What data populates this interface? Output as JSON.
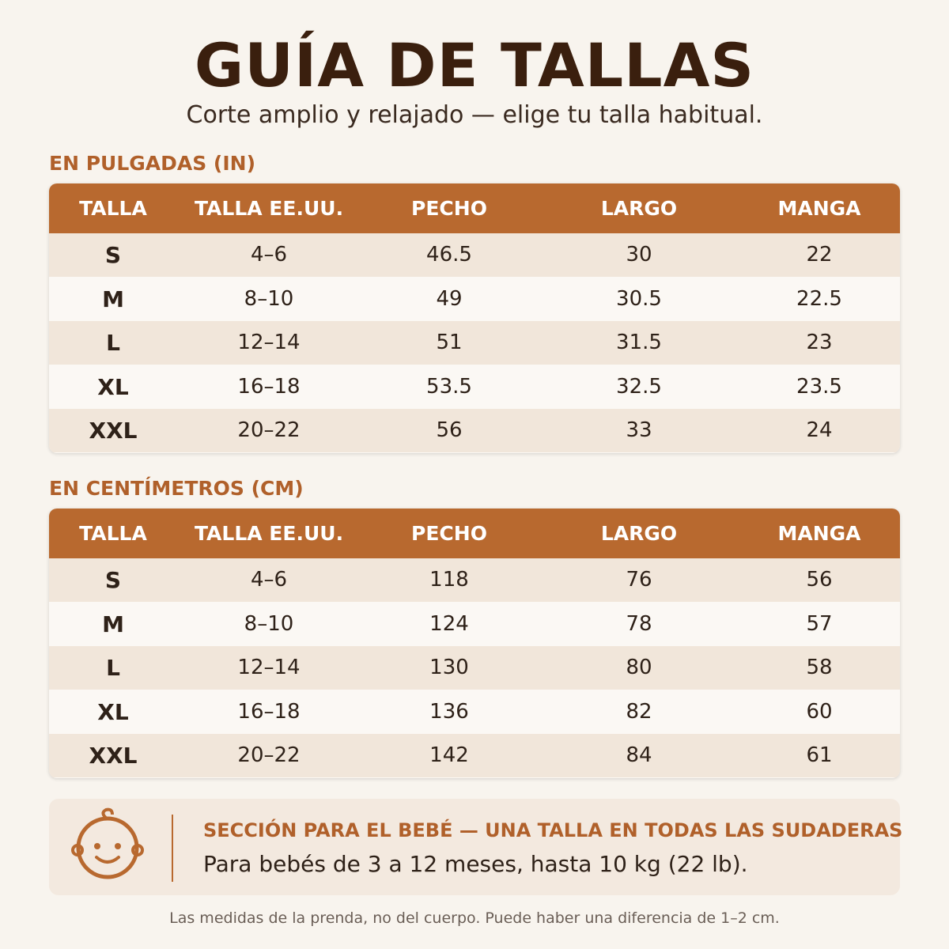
{
  "header": {
    "title": "GUÍA DE TALLAS",
    "subtitle": "Corte amplio y relajado — elige tu talla habitual."
  },
  "tables": [
    {
      "heading": "EN PULGADAS (IN)",
      "columns": [
        "TALLA",
        "TALLA EE.UU.",
        "PECHO",
        "LARGO",
        "MANGA"
      ],
      "rows": [
        [
          "S",
          "4–6",
          46.5,
          30,
          22
        ],
        [
          "M",
          "8–10",
          49,
          30.5,
          22.5
        ],
        [
          "L",
          "12–14",
          51,
          31.5,
          23
        ],
        [
          "XL",
          "16–18",
          53.5,
          32.5,
          23.5
        ],
        [
          "XXL",
          "20–22",
          56,
          33,
          24
        ]
      ]
    },
    {
      "heading": "EN CENTÍMETROS (CM)",
      "columns": [
        "TALLA",
        "TALLA EE.UU.",
        "PECHO",
        "LARGO",
        "MANGA"
      ],
      "rows": [
        [
          "S",
          "4–6",
          118,
          76,
          56
        ],
        [
          "M",
          "8–10",
          124,
          78,
          57
        ],
        [
          "L",
          "12–14",
          130,
          80,
          58
        ],
        [
          "XL",
          "16–18",
          136,
          82,
          60
        ],
        [
          "XXL",
          "20–22",
          142,
          84,
          61
        ]
      ]
    }
  ],
  "baby": {
    "title": "SECCIÓN PARA EL BEBÉ — UNA TALLA EN TODAS LAS SUDADERAS",
    "text": "Para bebés de 3 a 12 meses, hasta 10 kg (22 lb)."
  },
  "footnote": "Las medidas de la prenda, no del cuerpo. Puede haber una diferencia de 1–2 cm."
}
